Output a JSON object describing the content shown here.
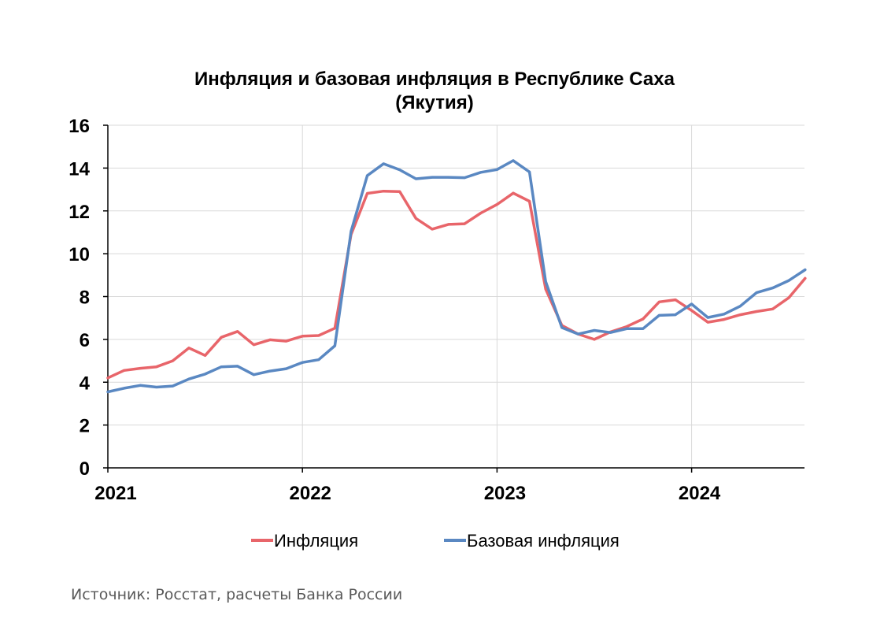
{
  "chart_data": {
    "type": "line",
    "title": [
      "Инфляция и базовая инфляция в Республике Саха",
      "(Якутия)"
    ],
    "xlabel": "",
    "ylabel": "",
    "ylim": [
      0,
      16
    ],
    "yticks": [
      "0",
      "2",
      "4",
      "6",
      "8",
      "10",
      "12",
      "14",
      "16"
    ],
    "xticks": [
      "2021",
      "2022",
      "2023",
      "2024"
    ],
    "x_start": "2021-01",
    "x_end": "2024-07",
    "grid": true,
    "legend_position": "bottom",
    "series": [
      {
        "name": "Инфляция",
        "color": "#e8656a",
        "values": [
          4.2,
          4.55,
          4.65,
          4.72,
          5.0,
          5.6,
          5.25,
          6.1,
          6.37,
          5.75,
          5.98,
          5.92,
          6.15,
          6.18,
          6.52,
          10.9,
          12.82,
          12.92,
          12.9,
          11.65,
          11.15,
          11.37,
          11.4,
          11.9,
          12.3,
          12.83,
          12.45,
          8.35,
          6.65,
          6.25,
          6.0,
          6.35,
          6.6,
          6.95,
          7.75,
          7.85,
          7.35,
          6.8,
          6.93,
          7.15,
          7.3,
          7.42,
          7.95,
          8.85
        ]
      },
      {
        "name": "Базовая инфляция",
        "color": "#5a88c2",
        "values": [
          3.55,
          3.72,
          3.85,
          3.77,
          3.82,
          4.15,
          4.38,
          4.72,
          4.75,
          4.35,
          4.52,
          4.63,
          4.92,
          5.05,
          5.7,
          11.05,
          13.65,
          14.2,
          13.92,
          13.5,
          13.57,
          13.57,
          13.55,
          13.8,
          13.93,
          14.35,
          13.82,
          8.7,
          6.55,
          6.25,
          6.42,
          6.32,
          6.5,
          6.5,
          7.12,
          7.15,
          7.65,
          7.02,
          7.18,
          7.55,
          8.18,
          8.4,
          8.75,
          9.25
        ]
      }
    ]
  },
  "source_text": "Источник: Росстат, расчеты Банка России"
}
